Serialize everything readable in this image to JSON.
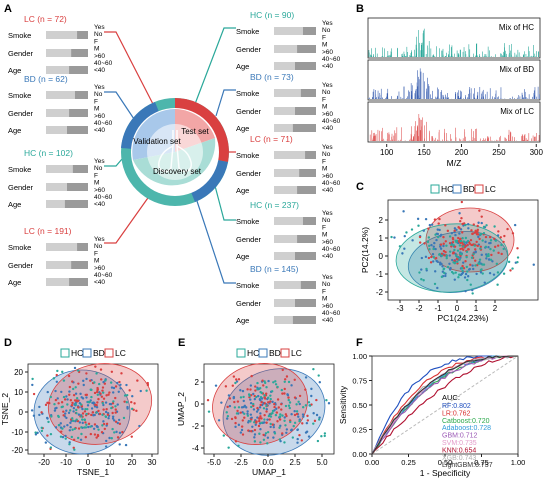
{
  "panel_labels": [
    "A",
    "B",
    "C",
    "D",
    "E",
    "F"
  ],
  "panelA": {
    "center_labels": [
      "Test set",
      "Validation set",
      "Discovery set"
    ],
    "colors": {
      "LC": "#d94040",
      "BD": "#3a78b8",
      "HC": "#2aa89a",
      "sets": [
        "#e06b6b",
        "#6fa8dc",
        "#4db6ac"
      ]
    },
    "row_labels": [
      "Smoke",
      "Gender",
      "Age"
    ],
    "cat_labels": {
      "smoke": [
        "Yes",
        "No"
      ],
      "gender": [
        "F",
        "M"
      ],
      "age": [
        ">60",
        "40~60",
        "<40"
      ]
    },
    "groups": [
      {
        "id": "left-lc-top",
        "title": "LC (n = 72)",
        "type": "LC"
      },
      {
        "id": "left-bd",
        "title": "BD (n = 62)",
        "type": "BD"
      },
      {
        "id": "left-hc",
        "title": "HC (n = 102)",
        "type": "HC"
      },
      {
        "id": "left-lc-bottom",
        "title": "LC (n = 191)",
        "type": "LC"
      },
      {
        "id": "right-hc-top",
        "title": "HC (n = 90)",
        "type": "HC"
      },
      {
        "id": "right-bd-top",
        "title": "BD (n = 73)",
        "type": "BD"
      },
      {
        "id": "right-lc",
        "title": "LC (n = 71)",
        "type": "LC"
      },
      {
        "id": "right-hc-bottom",
        "title": "HC (n = 237)",
        "type": "HC"
      },
      {
        "id": "right-bd-bottom",
        "title": "BD (n = 145)",
        "type": "BD"
      }
    ]
  },
  "panelB": {
    "spectra": [
      {
        "label": "Mix of HC",
        "color": "#2aa89a"
      },
      {
        "label": "Mix of BD",
        "color": "#3a5fb0"
      },
      {
        "label": "Mix of LC",
        "color": "#e05a5a"
      }
    ],
    "xlabel": "M/Z",
    "xticks": [
      "100",
      "150",
      "200",
      "250",
      "300"
    ]
  },
  "panelC": {
    "legend": [
      "HC",
      "BD",
      "LC"
    ],
    "xlabel": "PC1(24.23%)",
    "ylabel": "PC2(14.2%)",
    "xticks": [
      "-3",
      "-2",
      "-1",
      "0",
      "1",
      "2"
    ],
    "yticks": [
      "2",
      "1",
      "0",
      "-1",
      "-2"
    ]
  },
  "panelD": {
    "legend": [
      "HC",
      "BD",
      "LC"
    ],
    "xlabel": "TSNE_1",
    "ylabel": "TSNE_2",
    "xticks": [
      "-20",
      "-10",
      "0",
      "10",
      "20",
      "30"
    ],
    "yticks": [
      "20",
      "10",
      "0",
      "-10",
      "-20"
    ]
  },
  "panelE": {
    "legend": [
      "HC",
      "BD",
      "LC"
    ],
    "xlabel": "UMAP_1",
    "ylabel": "UMAP_2",
    "xticks": [
      "-5.0",
      "-2.5",
      "0.0",
      "2.5",
      "5.0"
    ],
    "yticks": [
      "2",
      "0",
      "-2",
      "-4"
    ]
  },
  "chart_data": {
    "type": "line",
    "title": "",
    "xlabel": "1 - Specificity",
    "ylabel": "Sensitivity",
    "xlim": [
      0,
      1
    ],
    "ylim": [
      0,
      1
    ],
    "xticks": [
      "0.00",
      "0.25",
      "0.50",
      "0.75",
      "1.00"
    ],
    "yticks": [
      "1.00",
      "0.75",
      "0.50",
      "0.25",
      "0.00"
    ],
    "legend_title": "AUC:",
    "series": [
      {
        "name": "RF:0.802",
        "color": "#1f4fbf",
        "auc": 0.802
      },
      {
        "name": "LR:0.762",
        "color": "#d93030",
        "auc": 0.762
      },
      {
        "name": "Catboost:0.720",
        "color": "#2aa84a",
        "auc": 0.72
      },
      {
        "name": "Adaboost:0.728",
        "color": "#2f9ad9",
        "auc": 0.728
      },
      {
        "name": "GBM:0.712",
        "color": "#9b59b6",
        "auc": 0.712
      },
      {
        "name": "SVM:0.735",
        "color": "#e39ac8",
        "auc": 0.735
      },
      {
        "name": "KNN:0.654",
        "color": "#b01030",
        "auc": 0.654
      },
      {
        "name": "XGB:0.743",
        "color": "#b0b0b0",
        "auc": 0.743
      },
      {
        "name": "LightGBM:0.737",
        "color": "#333333",
        "auc": 0.737
      }
    ]
  }
}
